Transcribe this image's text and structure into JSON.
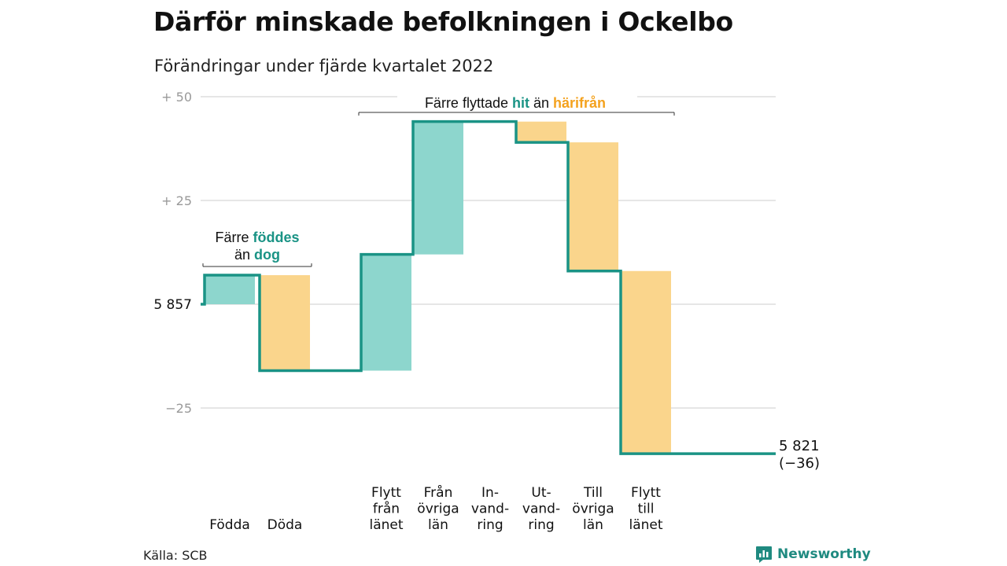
{
  "title": "Därför minskade befolkningen i Ockelbo",
  "subtitle": "Förändringar under fjärde kvartalet 2022",
  "source": "Källa: SCB",
  "brand": {
    "name": "Newsworthy",
    "icon": "newsworthy-logo-icon"
  },
  "colors": {
    "gain": "#8dd6cd",
    "loss": "#fad58c",
    "line": "#1a9385",
    "gain_text": "#1a9385",
    "loss_text": "#f4a21e",
    "grid": "#dddddd",
    "axis_text": "#999999"
  },
  "chart_data": {
    "type": "waterfall",
    "start": {
      "label": "5 857",
      "value": 5857
    },
    "end": {
      "label": "5 821",
      "change_label": "(−36)",
      "value": 5821
    },
    "yticks": [
      {
        "value": 50,
        "label": "+ 50"
      },
      {
        "value": 25,
        "label": "+ 25"
      },
      {
        "value": 0,
        "label": ""
      },
      {
        "value": -25,
        "label": "−25"
      }
    ],
    "ylim": [
      -37,
      50
    ],
    "grid": true,
    "steps": [
      {
        "label": "Födda",
        "change": 7,
        "kind": "gain"
      },
      {
        "label": "Döda",
        "change": -23,
        "kind": "loss"
      },
      {
        "label": "Flytt från länet",
        "change": 28,
        "kind": "gain"
      },
      {
        "label": "Från övriga län",
        "change": 32,
        "kind": "gain"
      },
      {
        "label": "In- vand- ring",
        "change": 0,
        "kind": "gain"
      },
      {
        "label": "Ut- vand- ring",
        "change": -5,
        "kind": "loss"
      },
      {
        "label": "Till övriga län",
        "change": -31,
        "kind": "loss"
      },
      {
        "label": "Flytt till länet",
        "change": -44,
        "kind": "loss"
      }
    ],
    "annotations": [
      {
        "name": "birth-annotation",
        "lines": [
          [
            "Färre ",
            "föddes"
          ],
          [
            "än ",
            "dog"
          ]
        ]
      },
      {
        "name": "migration-annotation",
        "lines": [
          [
            "Färre flyttade ",
            "hit",
            " än ",
            "härifrån"
          ]
        ]
      }
    ]
  }
}
